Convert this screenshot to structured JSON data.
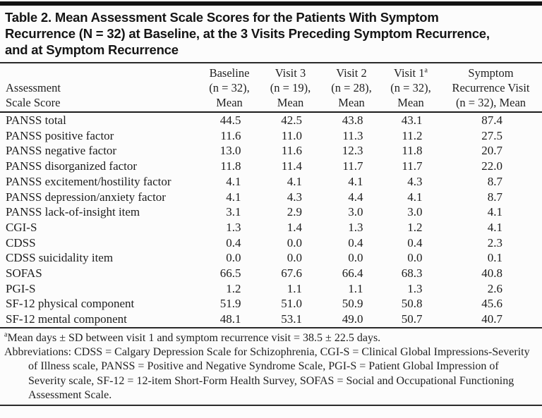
{
  "title": {
    "lines": [
      "Table 2. Mean Assessment Scale Scores for the Patients With Symptom",
      "Recurrence (N = 32) at Baseline, at the 3 Visits Preceding Symptom Recurrence,",
      "and at Symptom Recurrence"
    ]
  },
  "table": {
    "row_header": {
      "lines": [
        "Assessment",
        "Scale Score"
      ]
    },
    "columns": [
      {
        "lines": [
          "Baseline",
          "(n = 32),",
          "Mean"
        ],
        "sup": ""
      },
      {
        "lines": [
          "Visit 3",
          "(n = 19),",
          "Mean"
        ],
        "sup": ""
      },
      {
        "lines": [
          "Visit 2",
          "(n = 28),",
          "Mean"
        ],
        "sup": ""
      },
      {
        "lines": [
          "Visit 1",
          "(n = 32),",
          "Mean"
        ],
        "sup": "a"
      },
      {
        "lines": [
          "Symptom",
          "Recurrence Visit",
          "(n = 32), Mean"
        ],
        "sup": ""
      }
    ],
    "rows": [
      {
        "label": "PANSS total",
        "values": [
          "44.5",
          "42.5",
          "43.8",
          "43.1",
          "87.4"
        ]
      },
      {
        "label": "PANSS positive factor",
        "values": [
          "11.6",
          "11.0",
          "11.3",
          "11.2",
          "27.5"
        ]
      },
      {
        "label": "PANSS negative factor",
        "values": [
          "13.0",
          "11.6",
          "12.3",
          "11.8",
          "20.7"
        ]
      },
      {
        "label": "PANSS disorganized factor",
        "values": [
          "11.8",
          "11.4",
          "11.7",
          "11.7",
          "22.0"
        ]
      },
      {
        "label": "PANSS excitement/hostility factor",
        "values": [
          "4.1",
          "4.1",
          "4.1",
          "4.3",
          "8.7"
        ]
      },
      {
        "label": "PANSS depression/anxiety factor",
        "values": [
          "4.1",
          "4.3",
          "4.4",
          "4.1",
          "8.7"
        ]
      },
      {
        "label": "PANSS lack-of-insight item",
        "values": [
          "3.1",
          "2.9",
          "3.0",
          "3.0",
          "4.1"
        ]
      },
      {
        "label": "CGI-S",
        "values": [
          "1.3",
          "1.4",
          "1.3",
          "1.2",
          "4.1"
        ]
      },
      {
        "label": "CDSS",
        "values": [
          "0.4",
          "0.0",
          "0.4",
          "0.4",
          "2.3"
        ]
      },
      {
        "label": "CDSS suicidality item",
        "values": [
          "0.0",
          "0.0",
          "0.0",
          "0.0",
          "0.1"
        ]
      },
      {
        "label": "SOFAS",
        "values": [
          "66.5",
          "67.6",
          "66.4",
          "68.3",
          "40.8"
        ]
      },
      {
        "label": "PGI-S",
        "values": [
          "1.2",
          "1.1",
          "1.1",
          "1.3",
          "2.6"
        ]
      },
      {
        "label": "SF-12 physical component",
        "values": [
          "51.9",
          "51.0",
          "50.9",
          "50.8",
          "45.6"
        ]
      },
      {
        "label": "SF-12 mental component",
        "values": [
          "48.1",
          "53.1",
          "49.0",
          "50.7",
          "40.7"
        ]
      }
    ]
  },
  "footnotes": {
    "visit_note_sup": "a",
    "visit_note_text": "Mean days ± SD between visit 1 and symptom recurrence visit = 38.5 ± 22.5 days.",
    "abbreviations": "Abbreviations: CDSS = Calgary Depression Scale for Schizophrenia, CGI-S = Clinical Global Impressions-Severity of Illness scale, PANSS = Positive and Negative Syndrome Scale, PGI-S = Patient Global Impression of Severity scale, SF-12 = 12-item Short-Form Health Survey, SOFAS = Social and Occupational Functioning Assessment Scale."
  },
  "colors": {
    "top_rule": "#131313",
    "text": "#1d1d1d",
    "background": "#fcfcfc"
  }
}
